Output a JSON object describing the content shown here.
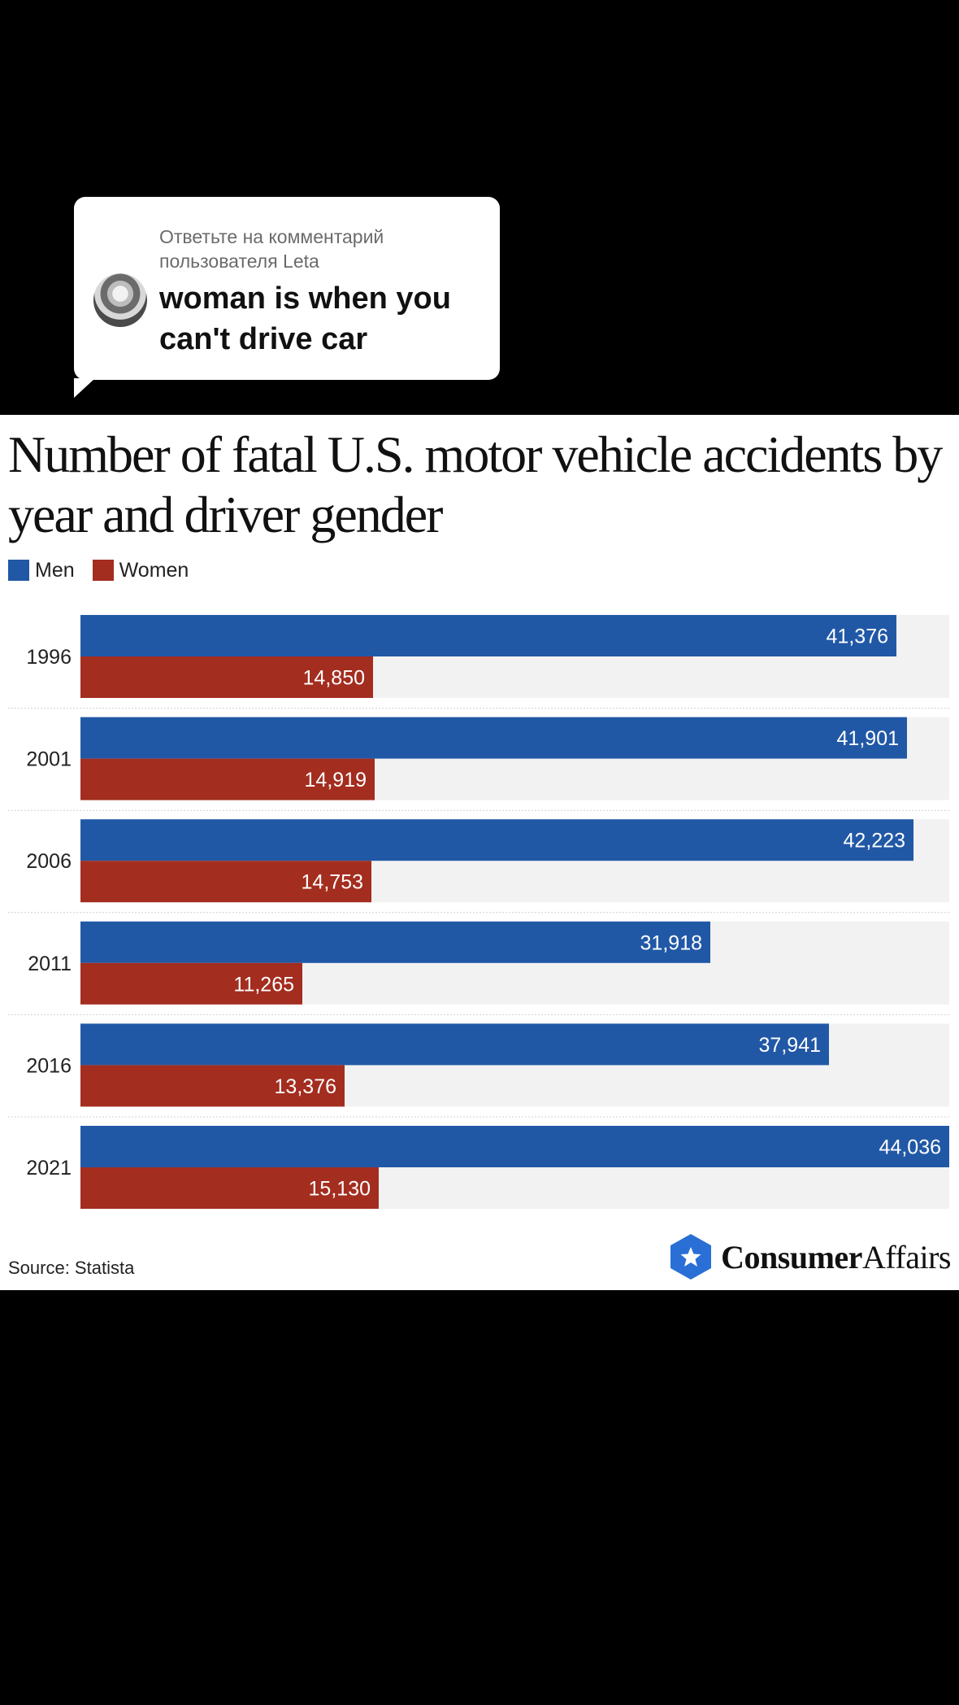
{
  "reply": {
    "header": "Ответьте на комментарий пользователя Leta",
    "comment": "woman is when you can't drive car"
  },
  "logo": {
    "part1": "Consumer",
    "part2": "Affairs",
    "badge_icon": "star-icon"
  },
  "source": "Source: Statista",
  "colors": {
    "men": "#2158a6",
    "women": "#a32d1f",
    "track": "#f2f2f2",
    "logo_blue": "#2a6fd6"
  },
  "chart_data": {
    "type": "bar",
    "orientation": "horizontal",
    "title": "Number of fatal U.S. motor vehicle accidents by year and driver gender",
    "categories": [
      "1996",
      "2001",
      "2006",
      "2011",
      "2016",
      "2021"
    ],
    "series": [
      {
        "name": "Men",
        "color": "#2158a6",
        "values": [
          41376,
          41901,
          42223,
          31918,
          37941,
          44036
        ],
        "labels": [
          "41,376",
          "41,901",
          "42,223",
          "31,918",
          "37,941",
          "44,036"
        ]
      },
      {
        "name": "Women",
        "color": "#a32d1f",
        "values": [
          14850,
          14919,
          14753,
          11265,
          13376,
          15130
        ],
        "labels": [
          "14,850",
          "14,919",
          "14,753",
          "11,265",
          "13,376",
          "15,130"
        ]
      }
    ],
    "xlim": [
      0,
      44036
    ],
    "legend": "top-left",
    "grid": false
  }
}
